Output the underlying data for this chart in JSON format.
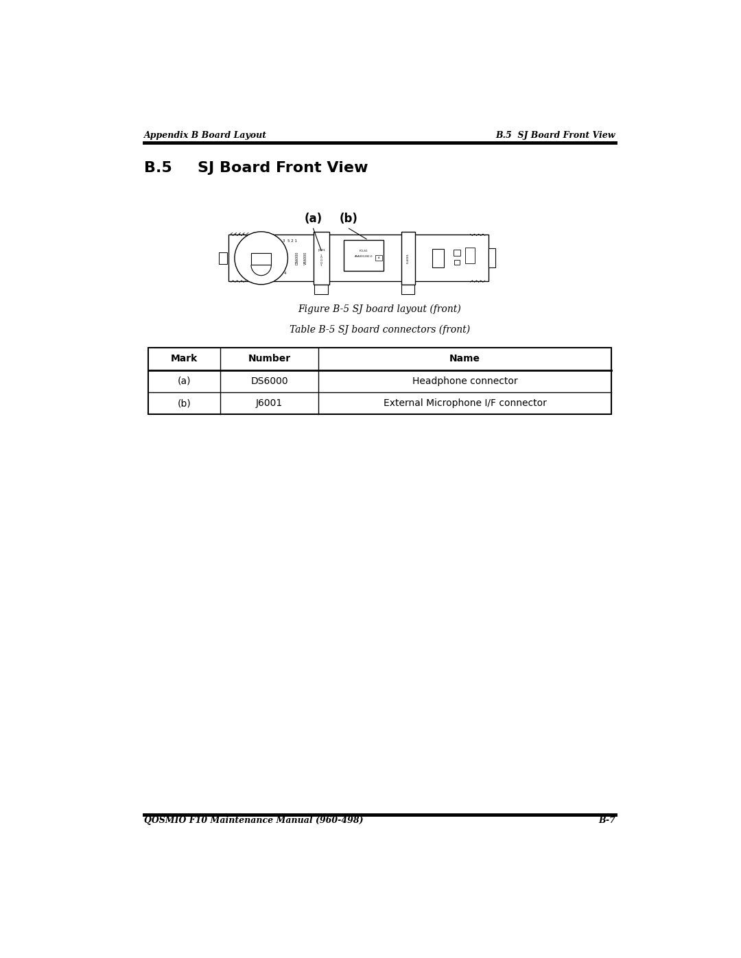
{
  "page_width": 10.8,
  "page_height": 13.97,
  "bg_color": "#ffffff",
  "header_left": "Appendix B Board Layout",
  "header_right": "B.5  SJ Board Front View",
  "section_title": "B.5",
  "section_title2": "SJ Board Front View",
  "figure_caption": "Figure B-5 SJ board layout (front)",
  "table_caption": "Table B-5 SJ board connectors (front)",
  "footer_left": "QOSMIO F10 Maintenance Manual (960-498)",
  "footer_right": "B-7",
  "table_headers": [
    "Mark",
    "Number",
    "Name"
  ],
  "table_rows": [
    [
      "(a)",
      "DS6000",
      "Headphone connector"
    ],
    [
      "(b)",
      "J6001",
      "External Microphone I/F connector"
    ]
  ],
  "label_a": "(a)",
  "label_b": "(b)"
}
